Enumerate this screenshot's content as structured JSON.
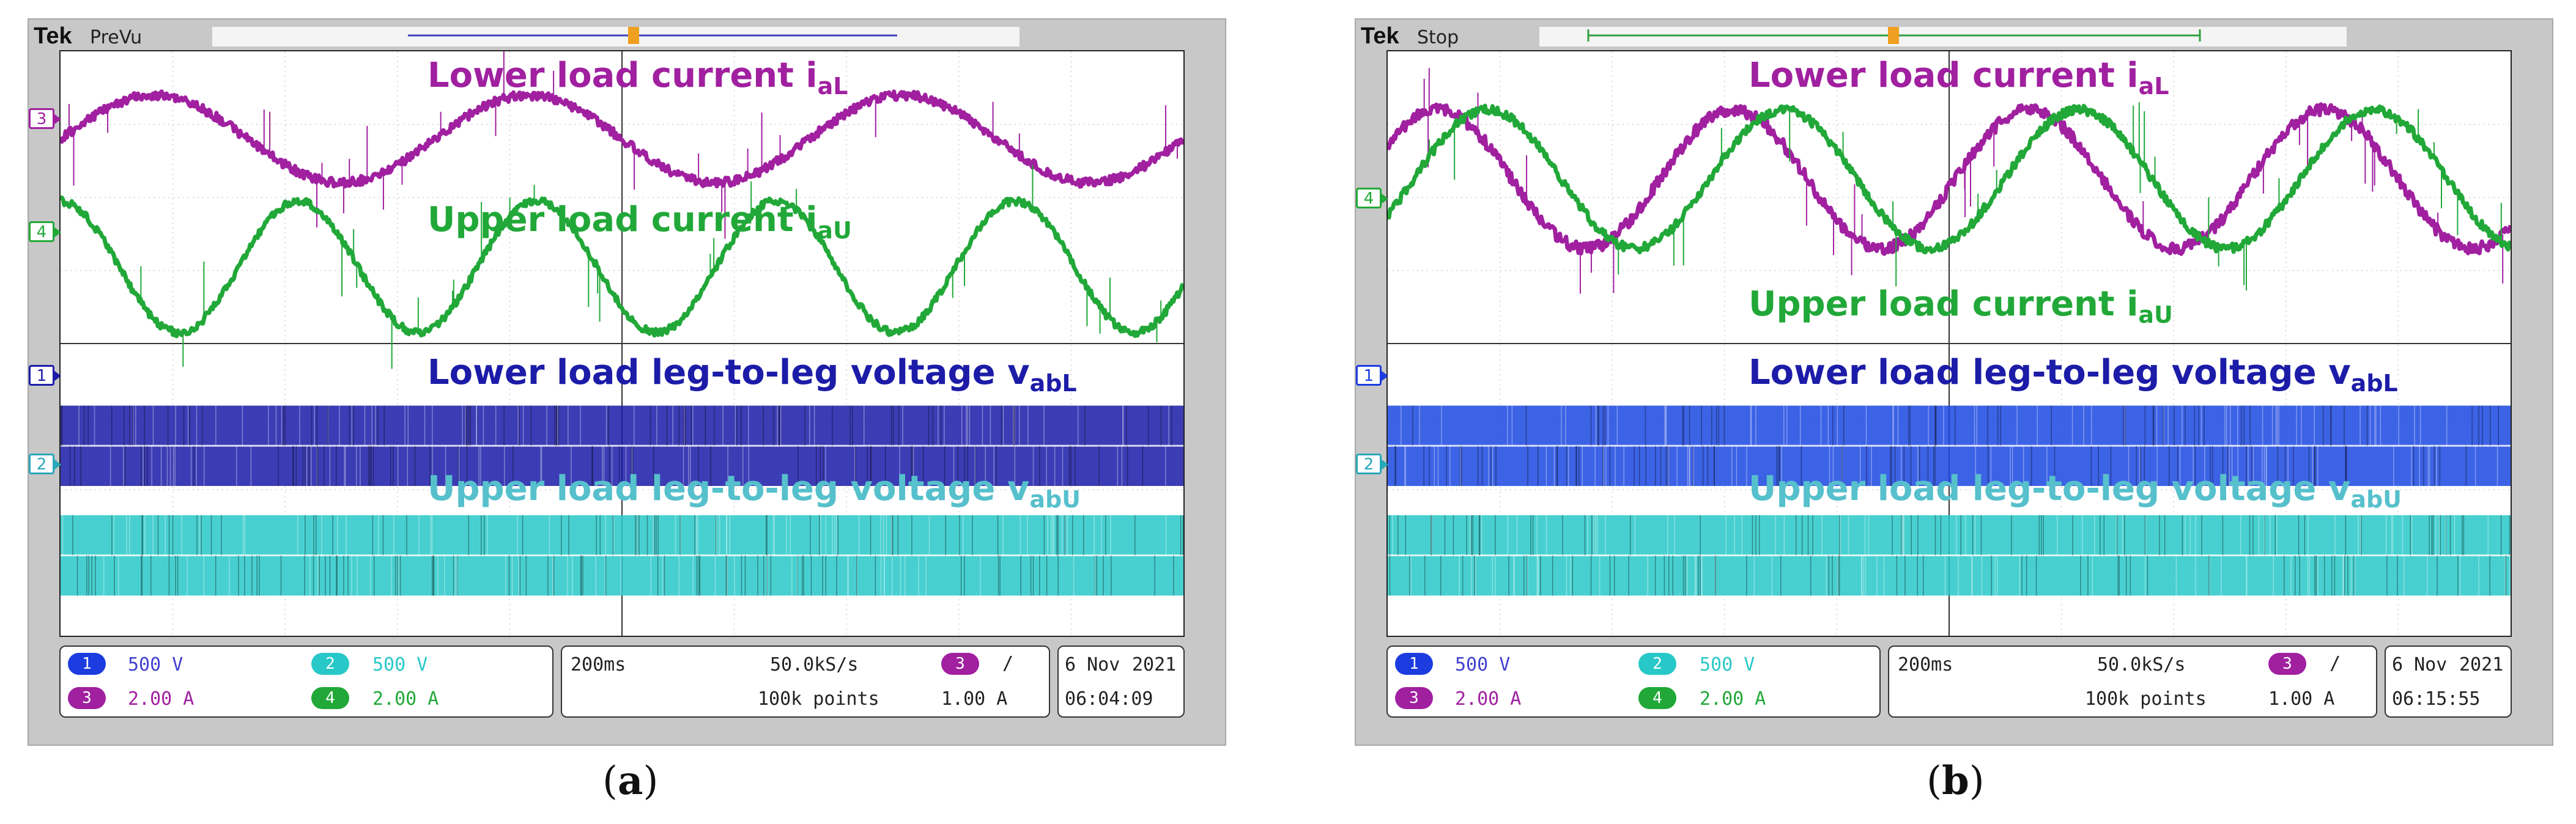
{
  "chart_data": [
    {
      "type": "line",
      "panel": "a",
      "caption": {
        "open": "(",
        "letter": "a",
        "close": ")"
      },
      "header": {
        "brand": "Tek",
        "state": "PreVu"
      },
      "annotations": {
        "lower_current": {
          "text": "Lower load current i",
          "sub": "aL"
        },
        "upper_current": {
          "text": "Upper load current i",
          "sub": "aU"
        },
        "lower_voltage": {
          "text": "Lower load leg-to-leg voltage v",
          "sub": "abL"
        },
        "upper_voltage": {
          "text": "Upper load leg-to-leg voltage v",
          "sub": "abU"
        }
      },
      "markers": {
        "ch3": "3",
        "ch4": "4",
        "ch1": "1",
        "ch2": "2"
      },
      "x": {
        "divisions": 10,
        "time_per_div": "200ms"
      },
      "series": [
        {
          "name": "Lower load current iaL",
          "channel": "3",
          "color": "#a020a0",
          "cycles": 3.0,
          "phase": 0.0,
          "amplitude_div": 0.6,
          "center_div": 1.2,
          "noise_div": 0.06
        },
        {
          "name": "Upper load current iaU",
          "channel": "4",
          "color": "#21a838",
          "cycles": 4.7,
          "phase": 1.6,
          "amplitude_div": 0.9,
          "center_div": 2.95,
          "noise_div": 0.05
        },
        {
          "name": "Lower load leg-to-leg voltage vabL",
          "channel": "1",
          "color": "#1a1aa8",
          "pwm": true,
          "center_div": 5.4,
          "halfheight_div": 0.55
        },
        {
          "name": "Upper load leg-to-leg voltage vabU",
          "channel": "2",
          "color": "#28c8c8",
          "pwm": true,
          "center_div": 6.9,
          "halfheight_div": 0.55
        }
      ],
      "footer": {
        "ch1": {
          "num": "1",
          "scale": "500 V"
        },
        "ch2": {
          "num": "2",
          "scale": "500 V"
        },
        "ch3": {
          "num": "3",
          "scale": "2.00 A"
        },
        "ch4": {
          "num": "4",
          "scale": "2.00 A"
        },
        "timebase": "200ms",
        "sample_rate": "50.0kS/s",
        "record": "100k points",
        "trigger_channel": "3",
        "trigger_slope": "/",
        "trigger_level": "1.00 A",
        "date_day": "6 Nov",
        "date_year": "2021",
        "time": "06:04:09"
      }
    },
    {
      "type": "line",
      "panel": "b",
      "caption": {
        "open": "(",
        "letter": "b",
        "close": ")"
      },
      "header": {
        "brand": "Tek",
        "state": "Stop"
      },
      "annotations": {
        "lower_current": {
          "text": "Lower load current i",
          "sub": "aL"
        },
        "upper_current": {
          "text": "Upper load current i",
          "sub": "aU"
        },
        "lower_voltage": {
          "text": "Lower load leg-to-leg voltage v",
          "sub": "abL"
        },
        "upper_voltage": {
          "text": "Upper load leg-to-leg voltage v",
          "sub": "abU"
        }
      },
      "markers": {
        "ch4": "4",
        "ch1": "1",
        "ch2": "2"
      },
      "x": {
        "divisions": 10,
        "time_per_div": "200ms"
      },
      "series": [
        {
          "name": "Lower load current iaL",
          "channel": "3",
          "color": "#a020a0",
          "cycles": 3.8,
          "phase": 0.5,
          "amplitude_div": 0.95,
          "center_div": 1.75,
          "noise_div": 0.08
        },
        {
          "name": "Upper load current iaU",
          "channel": "4",
          "color": "#21a838",
          "cycles": 3.8,
          "phase": -0.55,
          "amplitude_div": 0.95,
          "center_div": 1.75,
          "noise_div": 0.06
        },
        {
          "name": "Lower load leg-to-leg voltage vabL",
          "channel": "1",
          "color": "#1a46e0",
          "pwm": true,
          "center_div": 5.4,
          "halfheight_div": 0.55
        },
        {
          "name": "Upper load leg-to-leg voltage vabU",
          "channel": "2",
          "color": "#28c8c8",
          "pwm": true,
          "center_div": 6.9,
          "halfheight_div": 0.55
        }
      ],
      "footer": {
        "ch1": {
          "num": "1",
          "scale": "500 V"
        },
        "ch2": {
          "num": "2",
          "scale": "500 V"
        },
        "ch3": {
          "num": "3",
          "scale": "2.00 A"
        },
        "ch4": {
          "num": "4",
          "scale": "2.00 A"
        },
        "timebase": "200ms",
        "sample_rate": "50.0kS/s",
        "record": "100k points",
        "trigger_channel": "3",
        "trigger_slope": "/",
        "trigger_level": "1.00 A",
        "date_day": "6 Nov",
        "date_year": "2021",
        "time": "06:15:55"
      }
    }
  ],
  "colors": {
    "magenta": "#a020a0",
    "green": "#21a838",
    "blue_label": "#1c1ca8",
    "cyan_label": "#56c0cc",
    "ch1_pill": "#1c3ce0",
    "ch2_pill": "#28c8c8",
    "ch3_pill": "#a020a0",
    "ch4_pill": "#21a838"
  }
}
